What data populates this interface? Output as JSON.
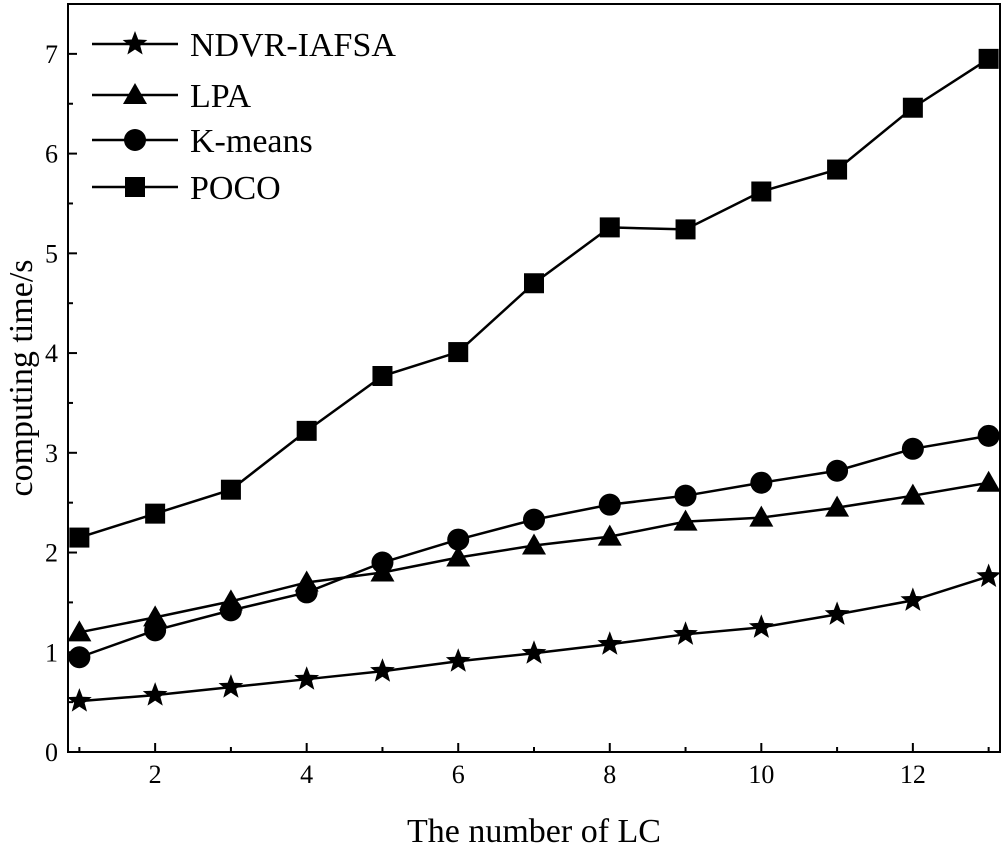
{
  "chart_data": {
    "type": "line",
    "title": "",
    "xlabel": "The number of LC",
    "ylabel": "computing time/s",
    "xlim": [
      0.85,
      13.15
    ],
    "ylim": [
      0,
      7.5
    ],
    "x": [
      1,
      2,
      3,
      4,
      5,
      6,
      7,
      8,
      9,
      10,
      11,
      12,
      13
    ],
    "xticks": [
      2,
      4,
      6,
      8,
      10,
      12
    ],
    "xtick_labels": [
      "2",
      "4",
      "6",
      "8",
      "10",
      "12"
    ],
    "yticks": [
      0,
      1,
      2,
      3,
      4,
      5,
      6,
      7
    ],
    "ytick_labels": [
      "0",
      "1",
      "2",
      "3",
      "4",
      "5",
      "6",
      "7"
    ],
    "grid": false,
    "legend_position": "top-left",
    "series": [
      {
        "name": "NDVR-IAFSA",
        "marker": "star",
        "values": [
          0.51,
          0.57,
          0.65,
          0.73,
          0.81,
          0.91,
          0.99,
          1.08,
          1.18,
          1.25,
          1.38,
          1.52,
          1.76
        ]
      },
      {
        "name": "LPA",
        "marker": "triangle",
        "values": [
          1.2,
          1.35,
          1.51,
          1.7,
          1.8,
          1.95,
          2.07,
          2.16,
          2.31,
          2.35,
          2.45,
          2.57,
          2.7
        ]
      },
      {
        "name": "K-means",
        "marker": "circle",
        "values": [
          0.95,
          1.22,
          1.42,
          1.6,
          1.9,
          2.13,
          2.33,
          2.48,
          2.57,
          2.7,
          2.82,
          3.04,
          3.17
        ]
      },
      {
        "name": "POCO",
        "marker": "square",
        "values": [
          2.15,
          2.39,
          2.63,
          3.22,
          3.77,
          4.01,
          4.7,
          5.26,
          5.24,
          5.62,
          5.84,
          6.46,
          6.95
        ]
      }
    ],
    "colors": {
      "line": "#000000",
      "marker": "#000000",
      "background": "#ffffff"
    }
  }
}
